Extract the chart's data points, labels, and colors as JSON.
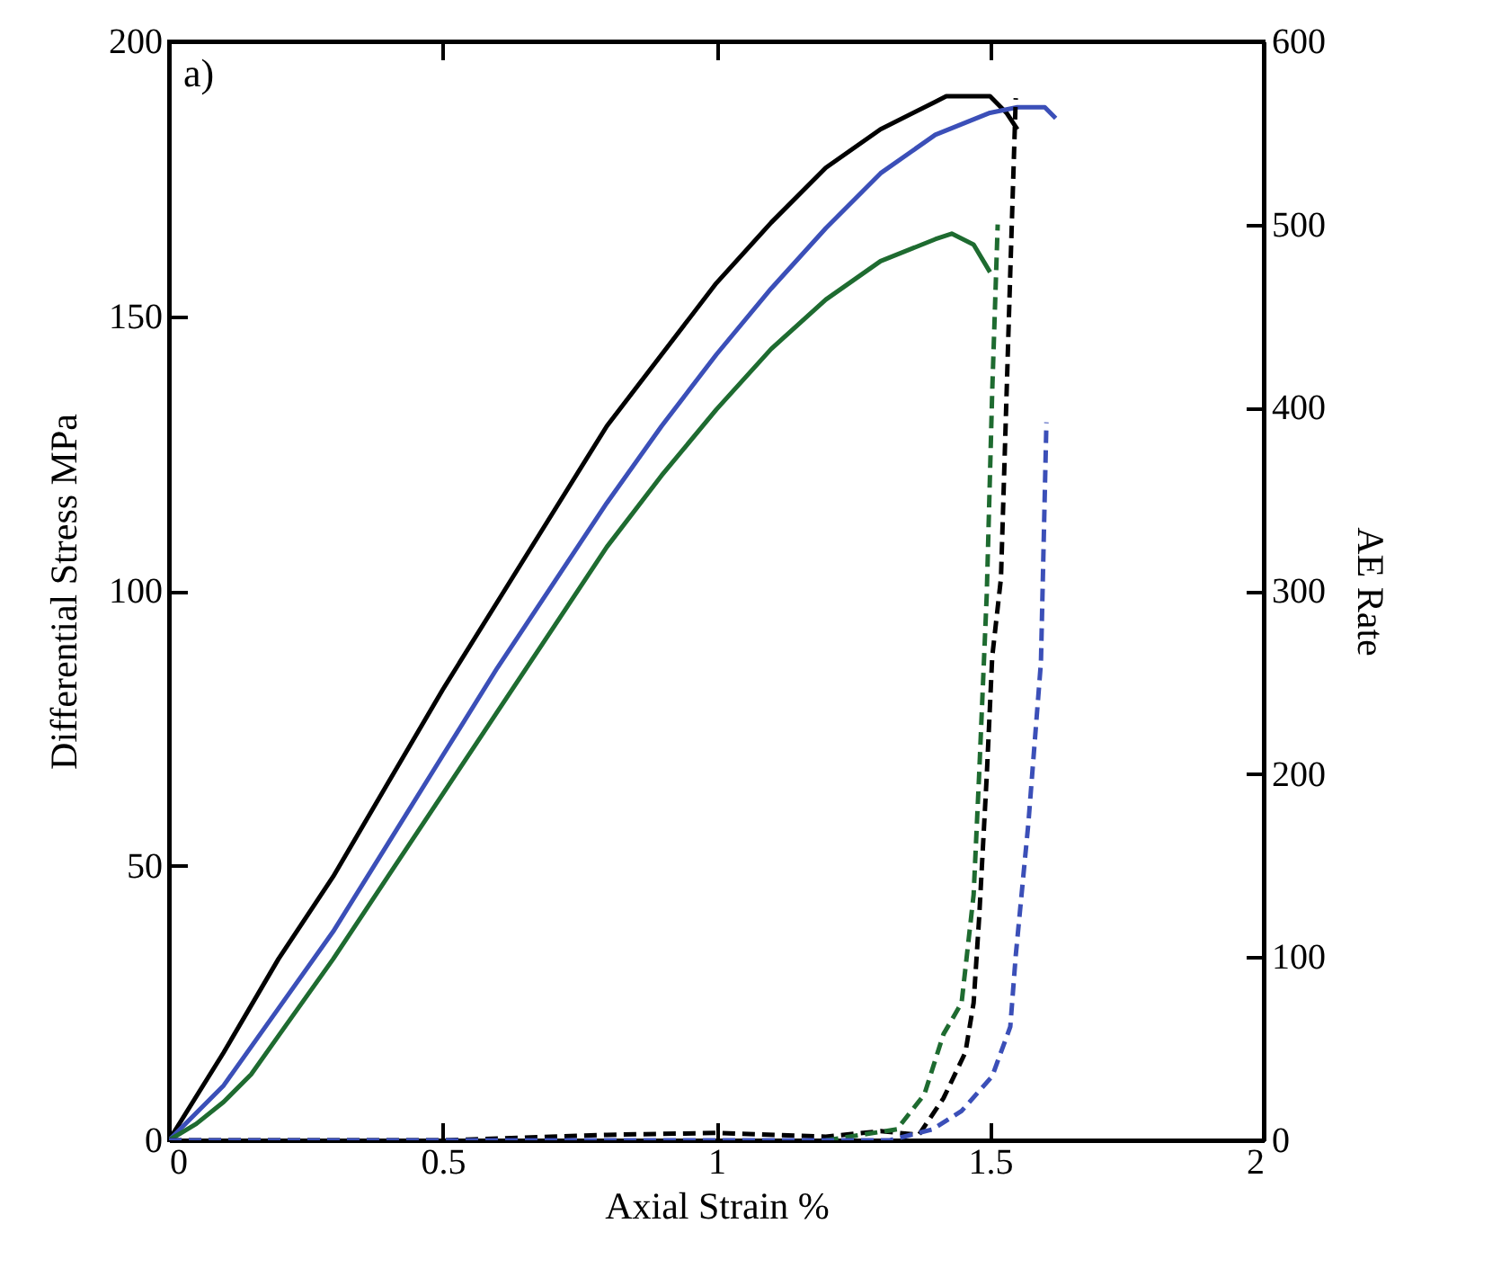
{
  "chart_data": {
    "type": "line",
    "xlabel": "Axial Strain %",
    "ylabel": "Differential Stress MPa",
    "y2label": "AE Rate",
    "annotations": [
      "a)"
    ],
    "xlim": [
      0,
      2
    ],
    "xticks": [
      0,
      0.5,
      1,
      1.5,
      2
    ],
    "ylim": [
      0,
      200
    ],
    "yticks": [
      0,
      50,
      100,
      150,
      200
    ],
    "y2lim": [
      0,
      600
    ],
    "y2ticks": [
      0,
      100,
      200,
      300,
      400,
      500,
      600
    ],
    "grid": false,
    "marker": "none",
    "series": [
      {
        "color": "#000000",
        "line_style": "solid",
        "x": [
          0,
          0.1,
          0.2,
          0.3,
          0.4,
          0.5,
          0.6,
          0.7,
          0.8,
          0.9,
          1.0,
          1.1,
          1.2,
          1.3,
          1.4,
          1.42,
          1.47,
          1.5,
          1.53,
          1.55
        ],
        "values": [
          0,
          16,
          33,
          48,
          65,
          82,
          98,
          114,
          130,
          143,
          156,
          167,
          177,
          184,
          189,
          190,
          190,
          190,
          187,
          184
        ]
      },
      {
        "color": "#3b4fb8",
        "line_style": "solid",
        "x": [
          0,
          0.1,
          0.2,
          0.3,
          0.4,
          0.5,
          0.6,
          0.7,
          0.8,
          0.9,
          1.0,
          1.1,
          1.2,
          1.3,
          1.4,
          1.5,
          1.55,
          1.6,
          1.62
        ],
        "values": [
          0,
          10,
          24,
          38,
          54,
          70,
          86,
          101,
          116,
          130,
          143,
          155,
          166,
          176,
          183,
          187,
          188,
          188,
          186
        ]
      },
      {
        "color": "#1e6b30",
        "line_style": "solid",
        "x": [
          0,
          0.05,
          0.1,
          0.15,
          0.2,
          0.3,
          0.4,
          0.5,
          0.6,
          0.7,
          0.8,
          0.9,
          1.0,
          1.1,
          1.2,
          1.3,
          1.4,
          1.43,
          1.47,
          1.5
        ],
        "values": [
          0,
          3,
          7,
          12,
          19,
          33,
          48,
          63,
          78,
          93,
          108,
          121,
          133,
          144,
          153,
          160,
          164,
          165,
          163,
          158
        ]
      },
      {
        "color": "#000000",
        "line_style": "dashed",
        "axis": "y2",
        "x": [
          0,
          0.5,
          0.8,
          1.0,
          1.2,
          1.3,
          1.37,
          1.415,
          1.455,
          1.47,
          1.48,
          1.494,
          1.504,
          1.52,
          1.537,
          1.547
        ],
        "values": [
          0,
          0,
          3,
          4,
          2,
          5,
          3,
          23,
          48,
          75,
          121,
          199,
          264,
          307,
          474,
          569
        ]
      },
      {
        "color": "#1e6b30",
        "line_style": "dashed",
        "axis": "y2",
        "x": [
          1.2,
          1.33,
          1.38,
          1.415,
          1.448,
          1.47,
          1.48,
          1.494,
          1.504,
          1.514
        ],
        "values": [
          0,
          6,
          25,
          58,
          75,
          134,
          199,
          298,
          409,
          500
        ]
      },
      {
        "color": "#3b4fb8",
        "line_style": "dashed",
        "axis": "y2",
        "x": [
          0,
          0.5,
          1.0,
          1.317,
          1.395,
          1.448,
          1.504,
          1.537,
          1.547,
          1.57,
          1.593,
          1.603
        ],
        "values": [
          0,
          0,
          0,
          0,
          6,
          16,
          35,
          62,
          101,
          173,
          261,
          392
        ]
      }
    ]
  }
}
